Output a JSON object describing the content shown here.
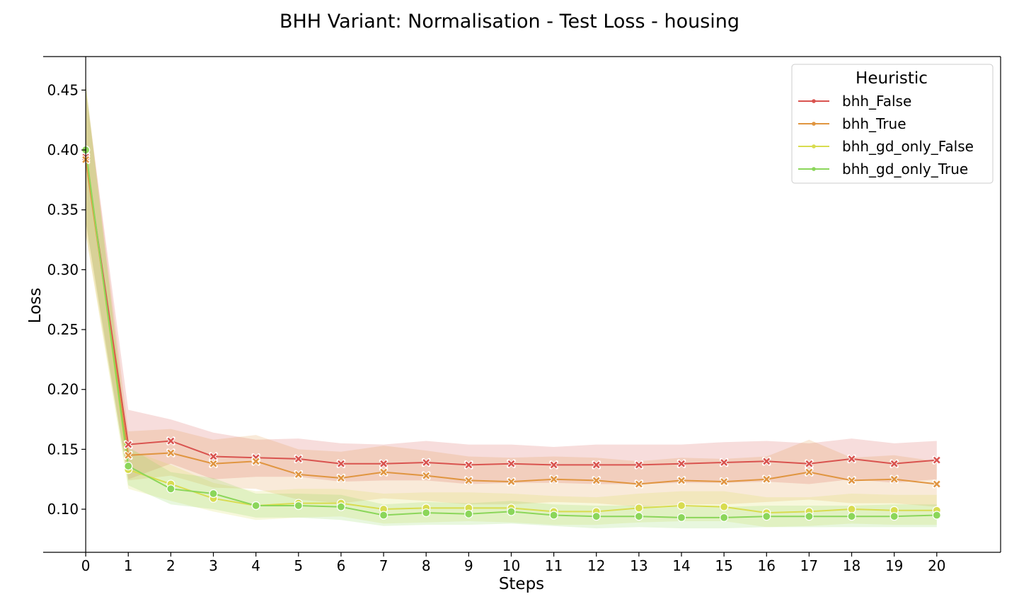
{
  "chart_data": {
    "type": "line",
    "title": "BHH Variant: Normalisation - Test Loss - housing",
    "xlabel": "Steps",
    "ylabel": "Loss",
    "xlim": [
      -1,
      21.5
    ],
    "ylim": [
      0.064,
      0.478
    ],
    "x": [
      0,
      1,
      2,
      3,
      4,
      5,
      6,
      7,
      8,
      9,
      10,
      11,
      12,
      13,
      14,
      15,
      16,
      17,
      18,
      19,
      20
    ],
    "xticks": [
      "0",
      "1",
      "2",
      "3",
      "4",
      "5",
      "6",
      "7",
      "8",
      "9",
      "10",
      "11",
      "12",
      "13",
      "14",
      "15",
      "16",
      "17",
      "18",
      "19",
      "20"
    ],
    "yticks": [
      0.1,
      0.15,
      0.2,
      0.25,
      0.3,
      0.35,
      0.4,
      0.45
    ],
    "ytick_labels": [
      "0.10",
      "0.15",
      "0.20",
      "0.25",
      "0.30",
      "0.35",
      "0.40",
      "0.45"
    ],
    "grid": false,
    "legend": {
      "title": "Heuristic",
      "position": "top-right"
    },
    "series": [
      {
        "name": "bhh_False",
        "color": "#d9534f",
        "marker": "x",
        "values": [
          0.394,
          0.154,
          0.157,
          0.144,
          0.143,
          0.142,
          0.138,
          0.138,
          0.139,
          0.137,
          0.138,
          0.137,
          0.137,
          0.137,
          0.138,
          0.139,
          0.14,
          0.138,
          0.142,
          0.138,
          0.141
        ],
        "lower": [
          0.34,
          0.125,
          0.138,
          0.125,
          0.127,
          0.127,
          0.123,
          0.124,
          0.124,
          0.121,
          0.122,
          0.122,
          0.121,
          0.121,
          0.122,
          0.122,
          0.123,
          0.121,
          0.125,
          0.122,
          0.125
        ],
        "upper": [
          0.45,
          0.183,
          0.175,
          0.164,
          0.158,
          0.159,
          0.155,
          0.154,
          0.157,
          0.154,
          0.154,
          0.152,
          0.154,
          0.154,
          0.154,
          0.156,
          0.157,
          0.155,
          0.159,
          0.155,
          0.157
        ]
      },
      {
        "name": "bhh_True",
        "color": "#e09540",
        "marker": "x",
        "values": [
          0.392,
          0.145,
          0.147,
          0.138,
          0.14,
          0.129,
          0.126,
          0.131,
          0.128,
          0.124,
          0.123,
          0.125,
          0.124,
          0.121,
          0.124,
          0.123,
          0.125,
          0.131,
          0.124,
          0.125,
          0.121
        ],
        "lower": [
          0.33,
          0.124,
          0.128,
          0.118,
          0.117,
          0.108,
          0.105,
          0.109,
          0.107,
          0.104,
          0.104,
          0.106,
          0.105,
          0.102,
          0.104,
          0.104,
          0.106,
          0.108,
          0.105,
          0.105,
          0.102
        ],
        "upper": [
          0.456,
          0.165,
          0.167,
          0.158,
          0.162,
          0.15,
          0.148,
          0.153,
          0.149,
          0.144,
          0.143,
          0.144,
          0.143,
          0.14,
          0.143,
          0.142,
          0.144,
          0.158,
          0.143,
          0.145,
          0.14
        ]
      },
      {
        "name": "bhh_gd_only_False",
        "color": "#d8dc4f",
        "marker": "o",
        "values": [
          0.4,
          0.133,
          0.121,
          0.109,
          0.103,
          0.105,
          0.105,
          0.1,
          0.101,
          0.101,
          0.101,
          0.098,
          0.098,
          0.101,
          0.103,
          0.102,
          0.097,
          0.098,
          0.1,
          0.099,
          0.099
        ],
        "lower": [
          0.33,
          0.117,
          0.107,
          0.098,
          0.091,
          0.093,
          0.094,
          0.088,
          0.089,
          0.09,
          0.089,
          0.087,
          0.087,
          0.089,
          0.09,
          0.09,
          0.085,
          0.086,
          0.088,
          0.087,
          0.087
        ],
        "upper": [
          0.455,
          0.15,
          0.137,
          0.122,
          0.115,
          0.117,
          0.117,
          0.113,
          0.114,
          0.114,
          0.113,
          0.111,
          0.11,
          0.113,
          0.115,
          0.115,
          0.11,
          0.11,
          0.113,
          0.112,
          0.112
        ]
      },
      {
        "name": "bhh_gd_only_True",
        "color": "#8bd65a",
        "marker": "o",
        "values": [
          0.4,
          0.136,
          0.117,
          0.113,
          0.103,
          0.103,
          0.102,
          0.095,
          0.097,
          0.096,
          0.098,
          0.095,
          0.094,
          0.094,
          0.093,
          0.093,
          0.094,
          0.094,
          0.094,
          0.094,
          0.095
        ],
        "lower": [
          0.34,
          0.12,
          0.104,
          0.1,
          0.093,
          0.093,
          0.091,
          0.086,
          0.087,
          0.087,
          0.088,
          0.086,
          0.084,
          0.085,
          0.084,
          0.084,
          0.085,
          0.085,
          0.085,
          0.085,
          0.085
        ],
        "upper": [
          0.455,
          0.152,
          0.131,
          0.126,
          0.113,
          0.113,
          0.112,
          0.104,
          0.106,
          0.105,
          0.107,
          0.104,
          0.103,
          0.103,
          0.102,
          0.102,
          0.103,
          0.103,
          0.103,
          0.104,
          0.104
        ]
      }
    ]
  }
}
